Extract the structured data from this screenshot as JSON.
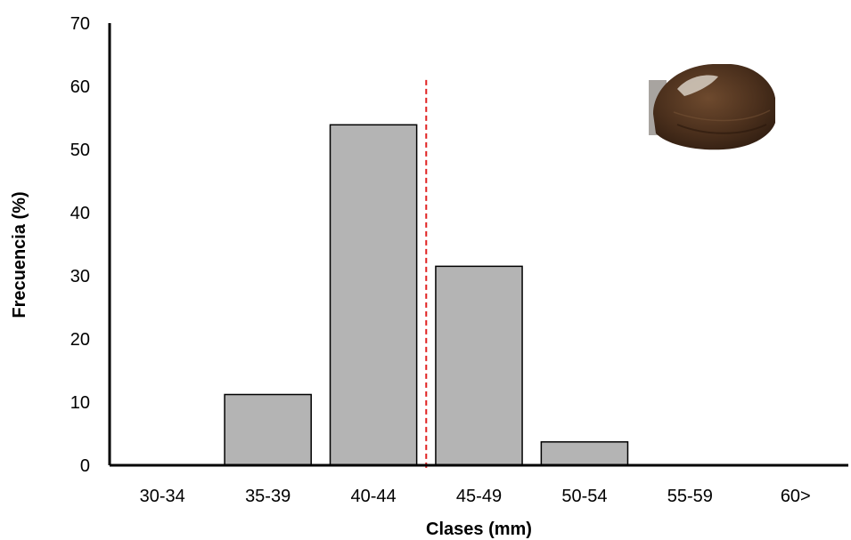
{
  "chart_data": {
    "type": "bar",
    "categories": [
      "30-34",
      "35-39",
      "40-44",
      "45-49",
      "50-54",
      "55-59",
      "60>"
    ],
    "values": [
      0,
      11.2,
      53.9,
      31.5,
      3.7,
      0,
      0
    ],
    "xlabel": "Clases (mm)",
    "ylabel": "Frecuencia (%)",
    "ylim": [
      0,
      70
    ],
    "yticks": [
      "0",
      "10",
      "20",
      "30",
      "40",
      "50",
      "60",
      "70"
    ],
    "reference_line": {
      "x_class_boundary": "40-44|45-49",
      "style": "dashed",
      "color": "#e02020"
    },
    "bar_color": "#b4b4b4",
    "bar_edge_color": "#000000",
    "grid": false,
    "legend": "none",
    "inset_image": "clam-shell-photo"
  }
}
